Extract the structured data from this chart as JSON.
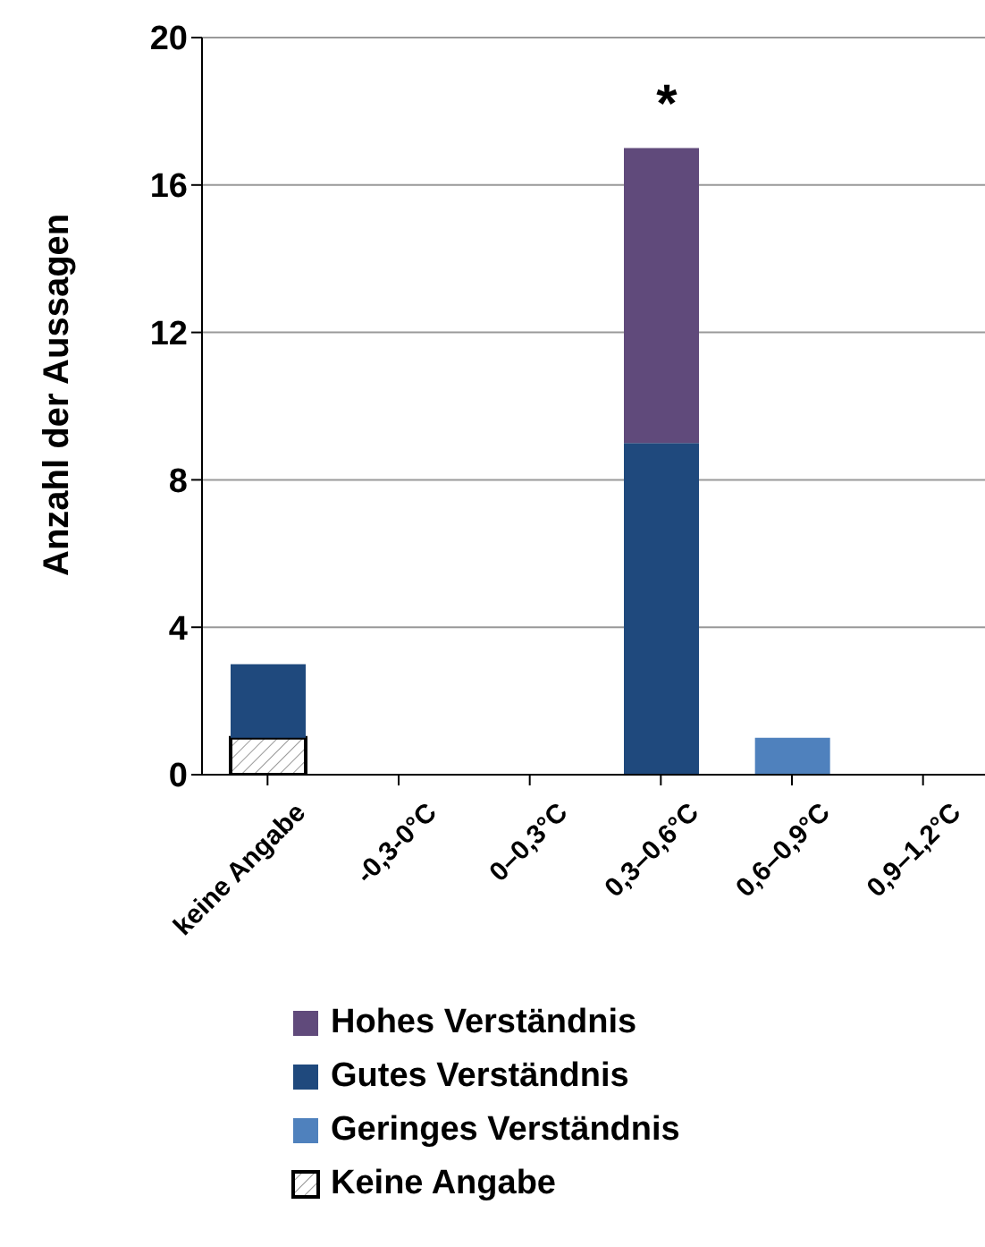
{
  "chart_data": {
    "type": "bar",
    "stacked": true,
    "ylabel": "Anzahl der Aussagen",
    "categories": [
      "keine Angabe",
      "-0,3-0°C",
      "0–0,3°C",
      "0,3–0,6°C",
      "0,6–0,9°C",
      "0,9–1,2°C"
    ],
    "series": [
      {
        "name": "Keine Angabe",
        "color": "#000000",
        "values": [
          1,
          0,
          0,
          0,
          0,
          0
        ]
      },
      {
        "name": "Geringes Verständnis",
        "color": "#4f81bd",
        "values": [
          0,
          0,
          0,
          0,
          1,
          0
        ]
      },
      {
        "name": "Gutes Verständnis",
        "color": "#1f497d",
        "values": [
          2,
          0,
          0,
          9,
          0,
          0
        ]
      },
      {
        "name": "Hohes Verständnis",
        "color": "#604a7b",
        "values": [
          0,
          0,
          0,
          8,
          0,
          0
        ]
      }
    ],
    "ylim": [
      0,
      20
    ],
    "yticks": [
      0,
      4,
      8,
      12,
      16,
      20
    ],
    "grid": "y",
    "legend": "bottom",
    "annotations": [
      "*"
    ]
  }
}
